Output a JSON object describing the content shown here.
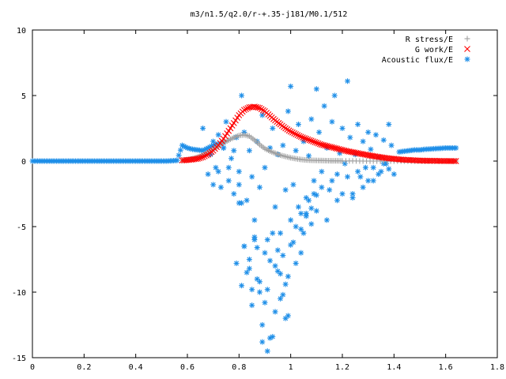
{
  "chart_data": {
    "type": "scatter",
    "title": "m3/n1.5/q2.0/r-+.35-j181/M0.1/512",
    "xlabel": "",
    "ylabel": "",
    "xlim": [
      0,
      1.8
    ],
    "ylim": [
      -15,
      10
    ],
    "xticks": [
      "0",
      "0.2",
      "0.4",
      "0.6",
      "0.8",
      "1",
      "1.2",
      "1.4",
      "1.6",
      "1.8"
    ],
    "yticks": [
      "10",
      "5",
      "0",
      "-5",
      "-10",
      "-15"
    ],
    "grid": false,
    "legend_position": "top-right",
    "series": [
      {
        "name": "R stress/E",
        "marker": "plus",
        "color": "#a0a0a0",
        "x": [
          0.58,
          0.6,
          0.62,
          0.64,
          0.66,
          0.68,
          0.7,
          0.72,
          0.74,
          0.76,
          0.78,
          0.8,
          0.82,
          0.84,
          0.86,
          0.88,
          0.9,
          0.92,
          0.94,
          0.96,
          0.98,
          1.0,
          1.02,
          1.04,
          1.06,
          1.08,
          1.1,
          1.12,
          1.14,
          1.16,
          1.18,
          1.2,
          1.24,
          1.28,
          1.32,
          1.36,
          1.4,
          1.44,
          1.48,
          1.52,
          1.56,
          1.6,
          1.64
        ],
        "y": [
          0.05,
          0.1,
          0.18,
          0.3,
          0.45,
          0.65,
          0.9,
          1.15,
          1.4,
          1.6,
          1.8,
          1.95,
          2.0,
          1.9,
          1.6,
          1.25,
          0.95,
          0.75,
          0.6,
          0.45,
          0.35,
          0.25,
          0.18,
          0.12,
          0.08,
          0.06,
          0.05,
          0.04,
          0.03,
          0.02,
          0.02,
          0.01,
          0.01,
          0.0,
          0.0,
          0.0,
          0.0,
          0.0,
          0.0,
          0.0,
          0.0,
          0.0,
          0.0
        ]
      },
      {
        "name": "G work/E",
        "marker": "cross",
        "color": "#ff0000",
        "x": [
          0.58,
          0.6,
          0.62,
          0.64,
          0.66,
          0.68,
          0.7,
          0.72,
          0.74,
          0.76,
          0.78,
          0.8,
          0.82,
          0.84,
          0.86,
          0.88,
          0.9,
          0.92,
          0.94,
          0.96,
          0.98,
          1.0,
          1.02,
          1.04,
          1.06,
          1.08,
          1.1,
          1.12,
          1.14,
          1.16,
          1.18,
          1.2,
          1.22,
          1.24,
          1.26,
          1.28,
          1.3,
          1.32,
          1.34,
          1.36,
          1.38,
          1.4,
          1.42,
          1.44,
          1.46,
          1.48,
          1.5,
          1.52,
          1.54,
          1.56,
          1.58,
          1.6,
          1.62,
          1.64
        ],
        "y": [
          0.05,
          0.08,
          0.12,
          0.18,
          0.3,
          0.5,
          0.8,
          1.2,
          1.7,
          2.3,
          2.9,
          3.5,
          3.9,
          4.1,
          4.15,
          4.05,
          3.8,
          3.45,
          3.1,
          2.8,
          2.5,
          2.25,
          2.05,
          1.85,
          1.7,
          1.55,
          1.4,
          1.25,
          1.15,
          1.05,
          0.95,
          0.85,
          0.75,
          0.68,
          0.6,
          0.52,
          0.45,
          0.38,
          0.32,
          0.26,
          0.21,
          0.17,
          0.13,
          0.1,
          0.08,
          0.06,
          0.04,
          0.03,
          0.02,
          0.02,
          0.01,
          0.01,
          0.0,
          0.0
        ]
      },
      {
        "name": "Acoustic flux/E",
        "marker": "star",
        "color": "#1f8fe8",
        "curve_x": [
          0.0,
          0.02,
          0.04,
          0.06,
          0.08,
          0.1,
          0.12,
          0.14,
          0.16,
          0.18,
          0.2,
          0.22,
          0.24,
          0.26,
          0.28,
          0.3,
          0.32,
          0.34,
          0.36,
          0.38,
          0.4,
          0.42,
          0.44,
          0.46,
          0.48,
          0.5,
          0.52,
          0.54,
          0.56,
          0.58,
          0.6,
          0.62,
          0.64,
          0.66,
          0.68,
          0.7,
          0.72,
          0.74,
          1.42,
          1.44,
          1.46,
          1.48,
          1.5,
          1.52,
          1.54,
          1.56,
          1.58,
          1.6,
          1.62,
          1.64
        ],
        "curve_y": [
          0,
          0,
          0,
          0,
          0,
          0,
          0,
          0,
          0,
          0,
          0,
          0,
          0,
          0,
          0,
          0,
          0,
          0,
          0,
          0,
          0,
          0,
          0,
          0,
          0,
          0,
          0,
          0.02,
          0.05,
          1.2,
          1.0,
          0.9,
          0.85,
          0.8,
          1.0,
          1.2,
          1.3,
          1.4,
          0.7,
          0.75,
          0.8,
          0.85,
          0.85,
          0.9,
          0.92,
          0.95,
          0.97,
          1.0,
          1.0,
          1.0
        ],
        "scatter_x": [
          0.66,
          0.68,
          0.69,
          0.7,
          0.71,
          0.72,
          0.73,
          0.74,
          0.75,
          0.76,
          0.77,
          0.78,
          0.79,
          0.8,
          0.81,
          0.82,
          0.83,
          0.84,
          0.85,
          0.86,
          0.87,
          0.88,
          0.89,
          0.9,
          0.91,
          0.92,
          0.93,
          0.94,
          0.95,
          0.96,
          0.97,
          0.98,
          0.99,
          1.0,
          1.01,
          1.02,
          1.03,
          1.04,
          1.05,
          1.06,
          1.07,
          1.08,
          1.09,
          1.1,
          1.11,
          1.12,
          1.13,
          1.14,
          1.15,
          1.16,
          1.17,
          1.18,
          1.19,
          1.2,
          1.21,
          1.22,
          1.23,
          1.24,
          1.25,
          1.26,
          1.27,
          1.28,
          1.29,
          1.3,
          1.31,
          1.32,
          1.33,
          1.34,
          1.35,
          1.36,
          1.37,
          1.38,
          1.39,
          1.4,
          0.7,
          0.72,
          0.74,
          0.76,
          0.78,
          0.79,
          0.8,
          0.81,
          0.82,
          0.83,
          0.84,
          0.85,
          0.86,
          0.87,
          0.88,
          0.89,
          0.9,
          0.91,
          0.92,
          0.93,
          0.94,
          0.95,
          0.96,
          0.97,
          0.98,
          0.99,
          1.0,
          1.01,
          1.02,
          1.03,
          1.04,
          1.05,
          1.06,
          1.07,
          1.08,
          1.09,
          1.1,
          1.12,
          1.14,
          1.16,
          1.18,
          1.2,
          1.22,
          1.24,
          1.26,
          1.28,
          1.3,
          1.32,
          1.34,
          1.36,
          1.38,
          0.8,
          0.82,
          0.84,
          0.86,
          0.88,
          0.9,
          0.92,
          0.94,
          0.96,
          0.98,
          1.0,
          1.02,
          1.04,
          1.06,
          1.08,
          1.1,
          0.81,
          0.85,
          0.87,
          0.89,
          0.91,
          0.93,
          0.95,
          0.97,
          0.99
        ],
        "scatter_y": [
          2.5,
          -1.0,
          0.5,
          1.5,
          -0.5,
          2.0,
          -2.0,
          1.0,
          3.0,
          -1.5,
          0.2,
          -2.5,
          1.8,
          -0.8,
          5.0,
          2.2,
          -3.0,
          0.8,
          -1.2,
          -4.5,
          1.5,
          -2.0,
          3.5,
          -0.5,
          -6.0,
          1.0,
          2.5,
          -3.5,
          0.5,
          -5.5,
          1.2,
          -2.2,
          3.8,
          5.7,
          -1.8,
          0.8,
          2.8,
          -4.0,
          1.5,
          -2.8,
          0.4,
          3.2,
          -1.5,
          5.5,
          2.2,
          -0.8,
          4.2,
          1.0,
          -2.2,
          3.0,
          5.0,
          -1.0,
          0.6,
          2.5,
          -0.2,
          6.1,
          1.8,
          -2.5,
          0.5,
          2.8,
          -1.2,
          1.5,
          -0.5,
          2.2,
          0.9,
          -1.5,
          2.0,
          0.3,
          -0.8,
          1.6,
          -0.2,
          2.8,
          1.2,
          -1.0,
          -1.8,
          -0.8,
          1.0,
          -0.5,
          0.8,
          -7.8,
          -3.2,
          -9.5,
          -6.5,
          -8.5,
          -7.5,
          -11.0,
          -6.0,
          -9.0,
          -10.0,
          -12.5,
          -7.0,
          -9.8,
          -13.5,
          -5.5,
          -8.0,
          -6.8,
          -10.5,
          -7.2,
          -12.0,
          -8.8,
          -4.5,
          -6.2,
          -5.0,
          -3.5,
          -7.0,
          -5.5,
          -4.0,
          -3.0,
          -4.8,
          -2.5,
          -3.8,
          -2.0,
          -4.5,
          -1.5,
          -3.0,
          -2.5,
          -1.2,
          -2.8,
          -0.8,
          -2.0,
          -1.5,
          -0.5,
          -1.0,
          -0.2,
          -0.6,
          -1.8,
          -6.5,
          -8.2,
          -5.8,
          -9.2,
          -10.8,
          -7.6,
          -11.5,
          -8.6,
          -9.4,
          -6.4,
          -7.8,
          -5.2,
          -4.2,
          -3.6,
          -2.6,
          -3.2,
          -9.8,
          -6.6,
          -13.8,
          -14.5,
          -13.4,
          -8.4,
          -10.2,
          -11.8,
          -9.0
        ]
      }
    ]
  }
}
